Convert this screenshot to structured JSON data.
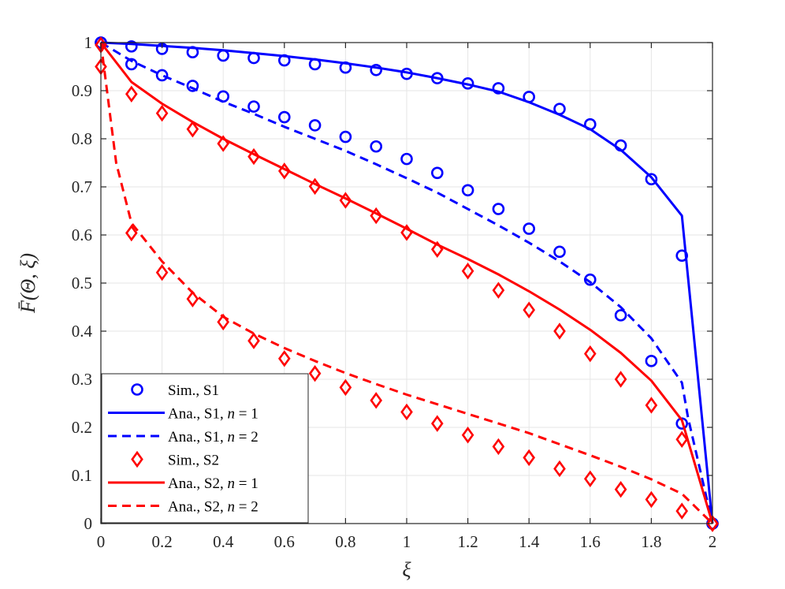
{
  "chart_data": {
    "type": "line",
    "xlabel": "ξ",
    "ylabel": "F̄(Θ, ξ)",
    "xlim": [
      0,
      2
    ],
    "ylim": [
      0,
      1
    ],
    "xticks": [
      "0",
      "0.2",
      "0.4",
      "0.6",
      "0.8",
      "1",
      "1.2",
      "1.4",
      "1.6",
      "1.8",
      "2"
    ],
    "yticks": [
      "0",
      "0.1",
      "0.2",
      "0.3",
      "0.4",
      "0.5",
      "0.6",
      "0.7",
      "0.8",
      "0.9",
      "1"
    ],
    "grid": true,
    "legend_position": "bottom-left",
    "colors": {
      "blue": "#0000ff",
      "red": "#ff0000",
      "grid": "#e6e6e6",
      "axis": "#262626"
    },
    "series": [
      {
        "name": "Sim., S1",
        "color": "#0000ff",
        "style": "marker",
        "marker": "circle",
        "x": [
          0,
          0.1,
          0.2,
          0.3,
          0.4,
          0.5,
          0.6,
          0.7,
          0.8,
          0.9,
          1.0,
          1.1,
          1.2,
          1.3,
          1.4,
          1.5,
          1.6,
          1.7,
          1.8,
          1.9,
          2.0
        ],
        "y": [
          1.0,
          0.992,
          0.987,
          0.98,
          0.973,
          0.968,
          0.963,
          0.955,
          0.948,
          0.943,
          0.935,
          0.926,
          0.915,
          0.905,
          0.887,
          0.862,
          0.83,
          0.786,
          0.716,
          0.557,
          0.0
        ]
      },
      {
        "name": "Ana., S1, n = 1",
        "color": "#0000ff",
        "style": "solid",
        "x": [
          0,
          0.1,
          0.2,
          0.3,
          0.4,
          0.5,
          0.6,
          0.7,
          0.8,
          0.9,
          1.0,
          1.1,
          1.2,
          1.3,
          1.4,
          1.5,
          1.6,
          1.7,
          1.8,
          1.9,
          2.0
        ],
        "y": [
          1.0,
          0.997,
          0.993,
          0.989,
          0.984,
          0.978,
          0.972,
          0.965,
          0.957,
          0.948,
          0.938,
          0.926,
          0.913,
          0.898,
          0.876,
          0.85,
          0.82,
          0.777,
          0.72,
          0.64,
          0.0
        ]
      },
      {
        "name": "Sim., S1",
        "color": "#0000ff",
        "style": "marker",
        "marker": "circle",
        "x": [
          0,
          0.1,
          0.2,
          0.3,
          0.4,
          0.5,
          0.6,
          0.7,
          0.8,
          0.9,
          1.0,
          1.1,
          1.2,
          1.3,
          1.4,
          1.5,
          1.6,
          1.7,
          1.8,
          1.9,
          2.0
        ],
        "y": [
          1.0,
          0.955,
          0.932,
          0.91,
          0.888,
          0.867,
          0.845,
          0.828,
          0.804,
          0.784,
          0.758,
          0.729,
          0.693,
          0.654,
          0.613,
          0.565,
          0.507,
          0.433,
          0.338,
          0.208,
          0.0
        ]
      },
      {
        "name": "Ana., S1, n = 2",
        "color": "#0000ff",
        "style": "dashed",
        "x": [
          0,
          0.1,
          0.2,
          0.3,
          0.4,
          0.5,
          0.6,
          0.7,
          0.8,
          0.9,
          1.0,
          1.1,
          1.2,
          1.3,
          1.4,
          1.5,
          1.6,
          1.7,
          1.8,
          1.9,
          1.92,
          2.0
        ],
        "y": [
          1.0,
          0.962,
          0.932,
          0.905,
          0.877,
          0.852,
          0.825,
          0.8,
          0.775,
          0.747,
          0.718,
          0.688,
          0.654,
          0.62,
          0.584,
          0.545,
          0.502,
          0.45,
          0.385,
          0.293,
          0.22,
          0.0
        ]
      },
      {
        "name": "Sim., S2",
        "color": "#ff0000",
        "style": "marker",
        "marker": "diamond",
        "x": [
          0,
          0.1,
          0.2,
          0.3,
          0.4,
          0.5,
          0.6,
          0.7,
          0.8,
          0.9,
          1.0,
          1.1,
          1.2,
          1.3,
          1.4,
          1.5,
          1.6,
          1.7,
          1.8,
          1.9,
          2.0
        ],
        "y": [
          0.995,
          0.893,
          0.853,
          0.82,
          0.79,
          0.763,
          0.733,
          0.701,
          0.672,
          0.64,
          0.605,
          0.57,
          0.525,
          0.485,
          0.444,
          0.4,
          0.353,
          0.3,
          0.246,
          0.175,
          0.0
        ]
      },
      {
        "name": "Ana., S2, n = 1",
        "color": "#ff0000",
        "style": "solid",
        "x": [
          0,
          0.1,
          0.2,
          0.3,
          0.4,
          0.5,
          0.6,
          0.7,
          0.8,
          0.9,
          1.0,
          1.1,
          1.2,
          1.3,
          1.4,
          1.5,
          1.6,
          1.7,
          1.8,
          1.9,
          2.0
        ],
        "y": [
          1.0,
          0.918,
          0.873,
          0.835,
          0.8,
          0.768,
          0.737,
          0.706,
          0.676,
          0.645,
          0.613,
          0.58,
          0.55,
          0.518,
          0.483,
          0.445,
          0.403,
          0.355,
          0.297,
          0.215,
          0.0
        ]
      },
      {
        "name": "Sim., S2",
        "color": "#ff0000",
        "style": "marker",
        "marker": "diamond",
        "x": [
          0,
          0.1,
          0.2,
          0.3,
          0.4,
          0.5,
          0.6,
          0.7,
          0.8,
          0.9,
          1.0,
          1.1,
          1.2,
          1.3,
          1.4,
          1.5,
          1.6,
          1.7,
          1.8,
          1.9,
          2.0
        ],
        "y": [
          0.95,
          0.604,
          0.522,
          0.467,
          0.419,
          0.38,
          0.343,
          0.312,
          0.283,
          0.256,
          0.232,
          0.208,
          0.184,
          0.16,
          0.137,
          0.114,
          0.093,
          0.071,
          0.05,
          0.026,
          0.0
        ]
      },
      {
        "name": "Ana., S2, n = 2",
        "color": "#ff0000",
        "style": "dashed",
        "x": [
          0,
          0.05,
          0.1,
          0.2,
          0.3,
          0.4,
          0.5,
          0.6,
          0.7,
          0.8,
          0.9,
          1.0,
          1.1,
          1.2,
          1.3,
          1.4,
          1.5,
          1.6,
          1.7,
          1.8,
          1.9,
          2.0
        ],
        "y": [
          1.0,
          0.75,
          0.625,
          0.545,
          0.48,
          0.43,
          0.395,
          0.365,
          0.338,
          0.313,
          0.29,
          0.268,
          0.248,
          0.228,
          0.208,
          0.188,
          0.165,
          0.142,
          0.118,
          0.092,
          0.062,
          0.0
        ]
      }
    ],
    "legend": [
      {
        "series": 0,
        "label": "Sim., S1",
        "color": "#0000ff",
        "style": "marker",
        "marker": "circle"
      },
      {
        "series": 1,
        "label": "Ana., S1, ",
        "math": "n",
        "suffix": " = 1",
        "color": "#0000ff",
        "style": "solid"
      },
      {
        "series": 3,
        "label": "Ana., S1, ",
        "math": "n",
        "suffix": " = 2",
        "color": "#0000ff",
        "style": "dashed"
      },
      {
        "series": 4,
        "label": "Sim., S2",
        "color": "#ff0000",
        "style": "marker",
        "marker": "diamond"
      },
      {
        "series": 5,
        "label": "Ana., S2, ",
        "math": "n",
        "suffix": " = 1",
        "color": "#ff0000",
        "style": "solid"
      },
      {
        "series": 7,
        "label": "Ana., S2, ",
        "math": "n",
        "suffix": " = 2",
        "color": "#ff0000",
        "style": "dashed"
      }
    ]
  }
}
